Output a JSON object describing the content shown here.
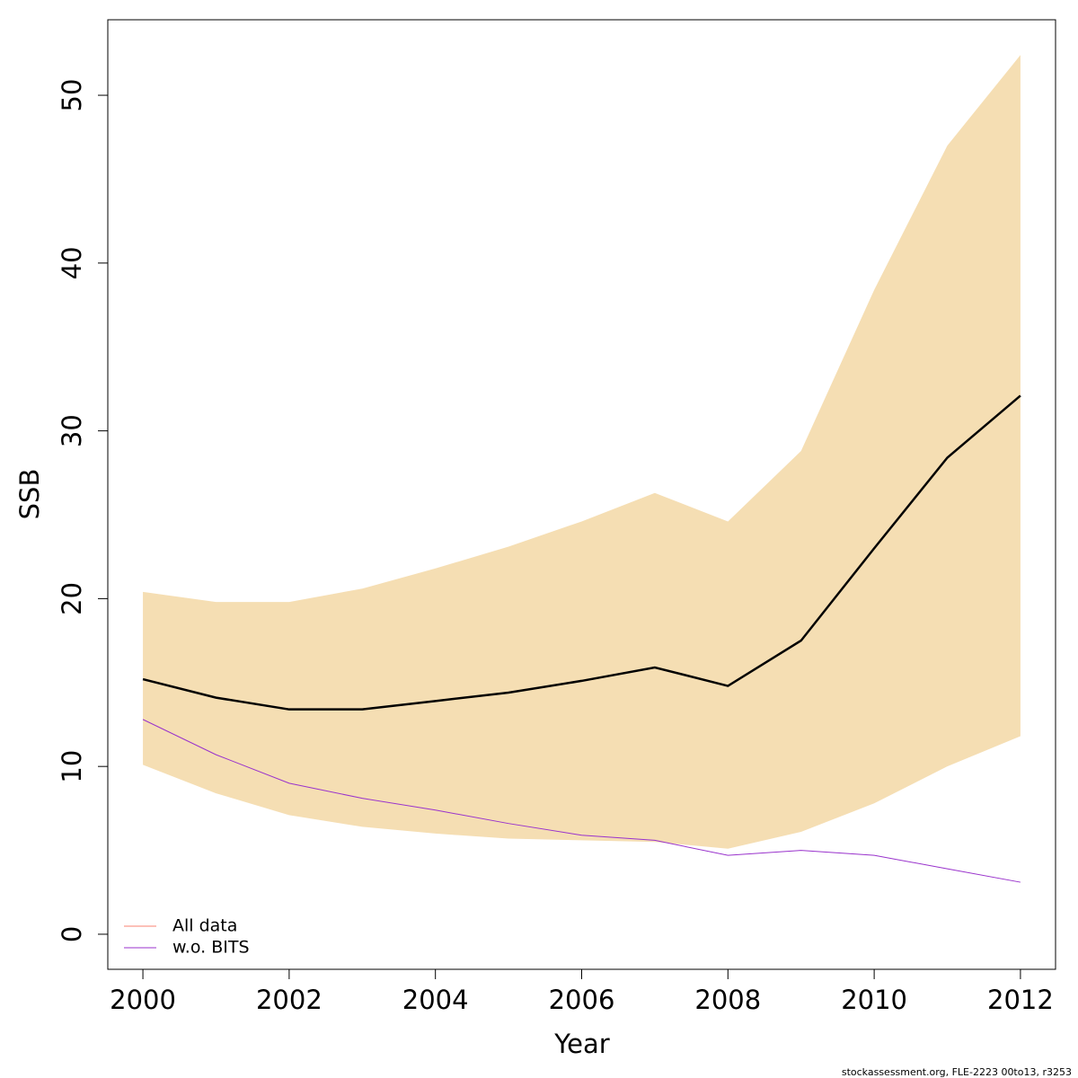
{
  "chart_data": {
    "type": "line",
    "xlabel": "Year",
    "ylabel": "SSB",
    "x": [
      2000,
      2001,
      2002,
      2003,
      2004,
      2005,
      2006,
      2007,
      2008,
      2009,
      2010,
      2011,
      2012
    ],
    "band": {
      "color": "#f5deb3",
      "upper": [
        20.4,
        19.8,
        19.8,
        20.6,
        21.8,
        23.1,
        24.6,
        26.3,
        24.6,
        28.8,
        38.4,
        47.0,
        52.4
      ],
      "lower": [
        10.1,
        8.4,
        7.1,
        6.4,
        6.0,
        5.7,
        5.6,
        5.5,
        5.1,
        6.1,
        7.8,
        10.0,
        11.8
      ]
    },
    "series": [
      {
        "name": "All data",
        "color": "#fa8072",
        "line_color": "#000000",
        "values": [
          15.2,
          14.1,
          13.4,
          13.4,
          13.9,
          14.4,
          15.1,
          15.9,
          14.8,
          17.5,
          23.0,
          28.4,
          32.1
        ]
      },
      {
        "name": "w.o. BITS",
        "color": "#9932cc",
        "values": [
          12.8,
          10.7,
          9.0,
          8.1,
          7.4,
          6.6,
          5.9,
          5.6,
          4.7,
          5.0,
          4.7,
          3.9,
          3.1
        ]
      }
    ],
    "xlim": [
      1999.52,
      2012.48
    ],
    "ylim": [
      -2.09,
      54.5
    ],
    "xticks": [
      2000,
      2002,
      2004,
      2006,
      2008,
      2010,
      2012
    ],
    "yticks": [
      0,
      10,
      20,
      30,
      40,
      50
    ],
    "legend_position": "bottom-left",
    "footer": "stockassessment.org, FLE-2223 00to13, r3253"
  }
}
